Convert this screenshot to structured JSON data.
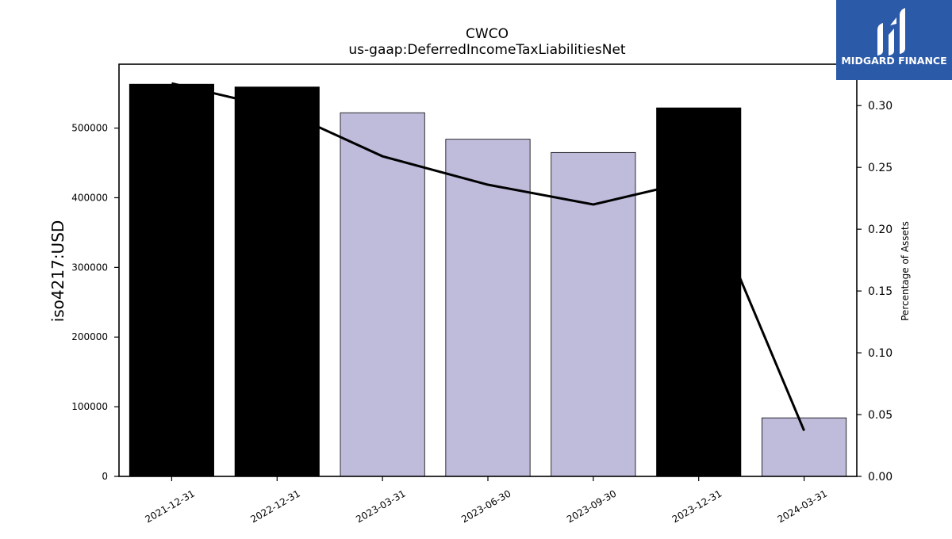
{
  "chart_data": {
    "type": "bar",
    "title": "CWCO",
    "subtitle": "us-gaap:DeferredIncomeTaxLiabilitiesNet",
    "ylabel": "iso4217:USD",
    "y2label": "Percentage of Assets",
    "categories": [
      "2021-12-31",
      "2022-12-31",
      "2023-03-31",
      "2023-06-30",
      "2023-09-30",
      "2023-12-31",
      "2024-03-31"
    ],
    "values": [
      563000,
      559000,
      522000,
      484000,
      465000,
      529000,
      84000
    ],
    "bar_colors": [
      "#000000",
      "#000000",
      "#bebbdb",
      "#bebbdb",
      "#bebbdb",
      "#000000",
      "#bebbdb"
    ],
    "ratio_series": [
      0.318,
      0.298,
      0.259,
      0.236,
      0.22,
      0.24,
      0.037
    ],
    "ylim": [
      0,
      591700
    ],
    "y2lim": [
      0,
      0.3335
    ],
    "yticks": [
      0,
      100000,
      200000,
      300000,
      400000,
      500000
    ],
    "y2ticks": [
      "0.00",
      "0.05",
      "0.10",
      "0.15",
      "0.20",
      "0.25",
      "0.30"
    ],
    "grid": false,
    "legend": "none"
  },
  "logo": {
    "text": "MIDGARD FINANCE",
    "bg_color": "#2b5aa8"
  }
}
